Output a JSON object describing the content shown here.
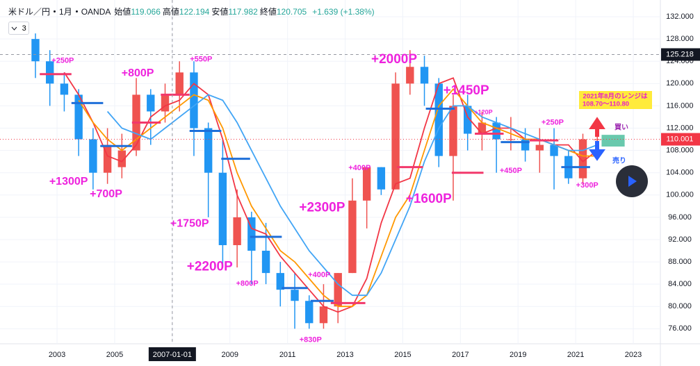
{
  "chart_data": {
    "type": "candlestick",
    "header": {
      "symbol": "米ドル／円",
      "interval": "1月",
      "source": "OANDA",
      "ohlc": [
        {
          "label": "始値",
          "value": 119.066
        },
        {
          "label": "高値",
          "value": 122.194
        },
        {
          "label": "安値",
          "value": 117.982
        },
        {
          "label": "終値",
          "value": 120.705
        }
      ],
      "change": "+1.639 (+1.38%)"
    },
    "dropdown": "3",
    "x": [
      2002.25,
      2002.75,
      2003.25,
      2003.75,
      2004.25,
      2004.75,
      2005.25,
      2005.75,
      2006.25,
      2006.75,
      2007.25,
      2007.75,
      2008.25,
      2008.75,
      2009.25,
      2009.75,
      2010.25,
      2010.75,
      2011.25,
      2011.75,
      2012.25,
      2012.75,
      2013.25,
      2013.75,
      2014.25,
      2014.75,
      2015.25,
      2015.75,
      2016.25,
      2016.75,
      2017.25,
      2017.75,
      2018.25,
      2018.75,
      2019.25,
      2019.75,
      2020.25,
      2020.75,
      2021.25,
      2021.75
    ],
    "open": [
      128,
      124,
      120,
      118,
      110,
      104,
      105,
      108,
      118,
      115,
      118,
      122,
      112,
      104,
      91,
      96,
      90,
      86,
      83,
      81,
      77,
      80,
      86,
      99,
      105,
      101,
      120,
      123,
      120,
      107,
      116,
      111,
      113,
      110,
      110,
      108,
      109,
      107,
      103,
      110
    ],
    "high": [
      129,
      126,
      122,
      119,
      112,
      112,
      111,
      121,
      119,
      120,
      124,
      124,
      113,
      110,
      101,
      97,
      95,
      88,
      86,
      82,
      84,
      86,
      103,
      105,
      105,
      122,
      126,
      125,
      121,
      118,
      118,
      115,
      114,
      114,
      112,
      112,
      112,
      108,
      111,
      112
    ],
    "low": [
      121,
      116,
      115,
      107,
      101,
      102,
      103,
      107,
      109,
      113,
      115,
      107,
      96,
      87,
      87,
      84,
      84,
      80,
      76,
      76,
      76,
      77,
      86,
      94,
      100,
      101,
      118,
      116,
      105,
      99,
      108,
      108,
      104,
      108,
      106,
      104,
      101,
      102,
      102,
      109
    ],
    "close": [
      124,
      120,
      118,
      110,
      104,
      109,
      108,
      118,
      115,
      118,
      122,
      112,
      104,
      91,
      96,
      90,
      86,
      83,
      81,
      77,
      80,
      86,
      99,
      105,
      101,
      120,
      123,
      120,
      107,
      116,
      111,
      113,
      110,
      110,
      108,
      109,
      107,
      103,
      110,
      110
    ],
    "up_color": "#ef5350",
    "down_color": "#2196f3",
    "moving_averages": [
      {
        "color": "#f23645",
        "values": [
          null,
          null,
          122,
          118,
          113,
          107,
          106,
          109,
          114,
          116,
          117,
          120,
          118,
          110,
          100,
          94,
          93,
          89,
          86,
          83,
          80,
          79,
          80,
          85,
          95,
          102,
          103,
          112,
          120,
          121,
          114,
          111,
          112,
          112,
          110,
          110,
          109,
          109,
          106,
          108
        ]
      },
      {
        "color": "#ff9800",
        "values": [
          null,
          null,
          null,
          117,
          113,
          110,
          108,
          110,
          112,
          114,
          116,
          118,
          117,
          112,
          104,
          98,
          94,
          90,
          88,
          85,
          82,
          80,
          80,
          82,
          89,
          96,
          100,
          108,
          116,
          119,
          116,
          113,
          112,
          111,
          110,
          110,
          109,
          108,
          107,
          107
        ]
      },
      {
        "color": "#42a5f5",
        "values": [
          null,
          null,
          null,
          null,
          null,
          115,
          112,
          111,
          110,
          112,
          114,
          116,
          118,
          117,
          113,
          108,
          103,
          98,
          94,
          90,
          87,
          84,
          82,
          82,
          86,
          92,
          98,
          106,
          112,
          116,
          116,
          114,
          113,
          112,
          111,
          110,
          109,
          108,
          108,
          109
        ]
      }
    ],
    "xlim": [
      2001.02,
      2023.94
    ],
    "ylim": [
      73.3,
      135.0
    ],
    "xticks": [
      2003,
      2005,
      2007,
      2009,
      2011,
      2013,
      2015,
      2017,
      2019,
      2021,
      2023
    ],
    "yticks": [
      {
        "value": 76,
        "label": "76.000"
      },
      {
        "value": 80,
        "label": "80.000"
      },
      {
        "value": 84,
        "label": "84.000"
      },
      {
        "value": 88,
        "label": "88.000"
      },
      {
        "value": 92,
        "label": "92.000"
      },
      {
        "value": 96,
        "label": "96.000"
      },
      {
        "value": 100,
        "label": "100.000"
      },
      {
        "value": 104,
        "label": "104.000"
      },
      {
        "value": 108,
        "label": "108.000"
      },
      {
        "value": 112,
        "label": "112.000"
      },
      {
        "value": 116,
        "label": "116.000"
      },
      {
        "value": 120,
        "label": "120.000"
      },
      {
        "value": 124,
        "label": "124.000"
      },
      {
        "value": 128,
        "label": "128.000"
      },
      {
        "value": 132,
        "label": "132.000"
      }
    ],
    "grid": true,
    "level_lines": [
      {
        "x0": 2002.4,
        "x1": 2003.5,
        "y": 121.7,
        "color": "#f2386b"
      },
      {
        "x0": 2003.5,
        "x1": 2004.6,
        "y": 116.5,
        "color": "#1e6fd9"
      },
      {
        "x0": 2004.5,
        "x1": 2005.6,
        "y": 108.8,
        "color": "#1e6fd9"
      },
      {
        "x0": 2005.6,
        "x1": 2006.6,
        "y": 113,
        "color": "#f2386b"
      },
      {
        "x0": 2006.6,
        "x1": 2007.6,
        "y": 118,
        "color": "#f2386b"
      },
      {
        "x0": 2007.6,
        "x1": 2008.7,
        "y": 111.5,
        "color": "#1e6fd9"
      },
      {
        "x0": 2008.7,
        "x1": 2009.7,
        "y": 106.5,
        "color": "#1e6fd9"
      },
      {
        "x0": 2009.7,
        "x1": 2010.8,
        "y": 92.5,
        "color": "#1e6fd9"
      },
      {
        "x0": 2010.8,
        "x1": 2011.7,
        "y": 83.3,
        "color": "#1e6fd9"
      },
      {
        "x0": 2011.8,
        "x1": 2012.6,
        "y": 81,
        "color": "#1e6fd9"
      },
      {
        "x0": 2012.5,
        "x1": 2013.7,
        "y": 80.6,
        "color": "#f2386b"
      },
      {
        "x0": 2014.8,
        "x1": 2015.7,
        "y": 105,
        "color": "#f2386b"
      },
      {
        "x0": 2015.8,
        "x1": 2016.8,
        "y": 115.5,
        "color": "#1e6fd9"
      },
      {
        "x0": 2016.7,
        "x1": 2017.8,
        "y": 104,
        "color": "#f2386b"
      },
      {
        "x0": 2017.5,
        "x1": 2018.5,
        "y": 111,
        "color": "#f2386b"
      },
      {
        "x0": 2018.4,
        "x1": 2019.4,
        "y": 109.5,
        "color": "#1e6fd9"
      },
      {
        "x0": 2019.4,
        "x1": 2020.4,
        "y": 109.8,
        "color": "#f2386b"
      },
      {
        "x0": 2020.5,
        "x1": 2021.5,
        "y": 105,
        "color": "#1e6fd9"
      }
    ],
    "annotations": [
      {
        "text": "+250P",
        "x": 2003.2,
        "y": 124.1,
        "size": "small"
      },
      {
        "text": "+800P",
        "x": 2005.8,
        "y": 121.8,
        "size": "medium"
      },
      {
        "text": "+550P",
        "x": 2008.0,
        "y": 124.3,
        "size": "small"
      },
      {
        "text": "+1300P",
        "x": 2003.4,
        "y": 102.4,
        "size": "medium"
      },
      {
        "text": "+700P",
        "x": 2004.7,
        "y": 100.1,
        "size": "medium"
      },
      {
        "text": "+1750P",
        "x": 2007.6,
        "y": 94.8,
        "size": "medium"
      },
      {
        "text": "+2200P",
        "x": 2008.3,
        "y": 87.1,
        "size": "large"
      },
      {
        "text": "+800P",
        "x": 2009.6,
        "y": 84.1,
        "size": "small"
      },
      {
        "text": "+400P",
        "x": 2012.1,
        "y": 85.6,
        "size": "small"
      },
      {
        "text": "+830P",
        "x": 2011.8,
        "y": 74.0,
        "size": "small"
      },
      {
        "text": "+2300P",
        "x": 2012.2,
        "y": 97.7,
        "size": "large"
      },
      {
        "text": "+400P",
        "x": 2013.5,
        "y": 104.8,
        "size": "small"
      },
      {
        "text": "+2000P",
        "x": 2014.7,
        "y": 124.3,
        "size": "large"
      },
      {
        "text": "+1450P",
        "x": 2017.2,
        "y": 118.7,
        "size": "large"
      },
      {
        "text": "+1600P",
        "x": 2015.9,
        "y": 99.2,
        "size": "large"
      },
      {
        "text": "+120P",
        "x": 2017.8,
        "y": 114.8,
        "size": "tiny"
      },
      {
        "text": "+250P",
        "x": 2020.2,
        "y": 113.0,
        "size": "small"
      },
      {
        "text": "+450P",
        "x": 2018.75,
        "y": 104.3,
        "size": "small"
      },
      {
        "text": "+300P",
        "x": 2021.4,
        "y": 101.7,
        "size": "small"
      }
    ],
    "note": [
      "2021年8月のレンジは",
      "108.70～110.80"
    ],
    "range_band": {
      "x0": 2021.9,
      "x1": 2022.7,
      "low": 108.7,
      "high": 110.8
    },
    "signals": {
      "buy": "買い",
      "sell": "売り"
    },
    "crosshair": {
      "x": 2007.0,
      "x_label": "2007-01-01",
      "y": 125.218
    },
    "last_price": 110.001
  }
}
